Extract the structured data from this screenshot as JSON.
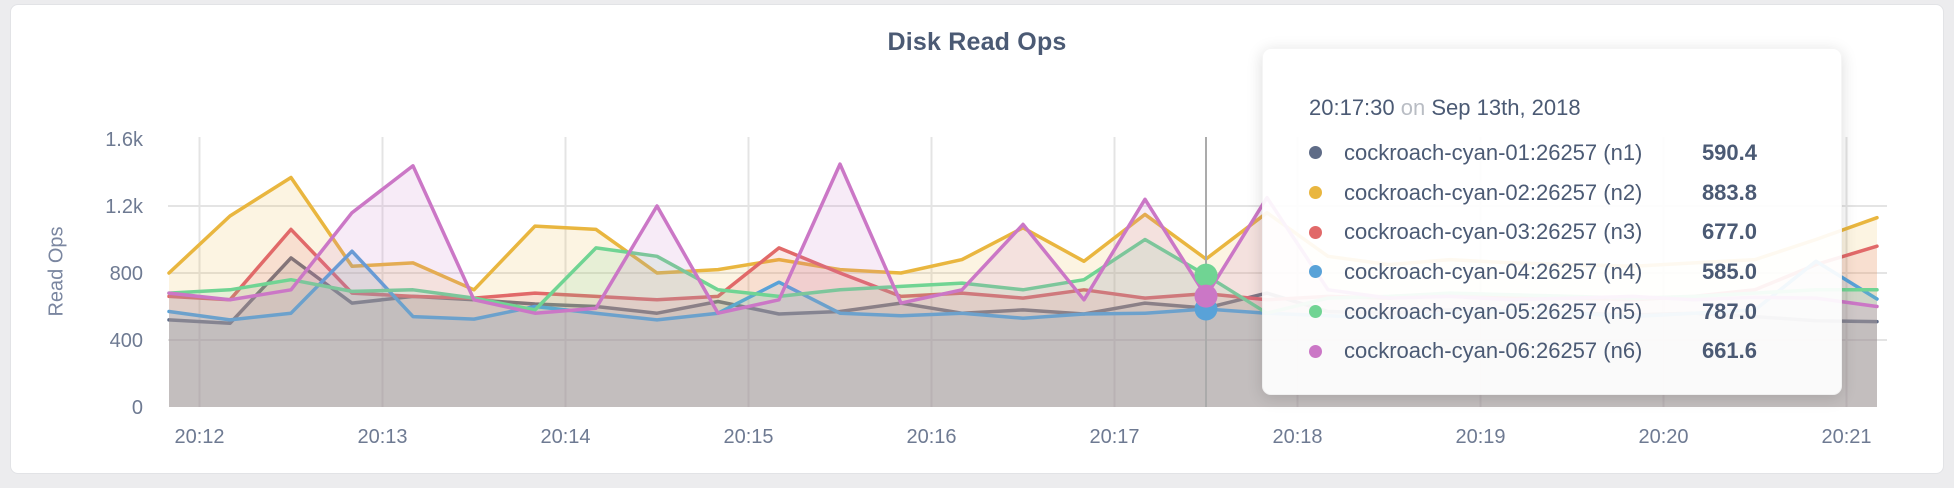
{
  "page": {
    "background": "#ececee",
    "card_background": "#ffffff"
  },
  "chart_data": {
    "type": "area",
    "title": "Disk Read Ops",
    "ylabel": "Read Ops",
    "grid": true,
    "legend_position": "tooltip-only",
    "x_start_time": "20:11:50",
    "x_step_seconds": 20,
    "x_ticks": [
      "20:12",
      "20:13",
      "20:14",
      "20:15",
      "20:16",
      "20:17",
      "20:18",
      "20:19",
      "20:20",
      "20:21"
    ],
    "y_ticks": [
      {
        "label": "0",
        "value": 0
      },
      {
        "label": "400",
        "value": 400
      },
      {
        "label": "800",
        "value": 800
      },
      {
        "label": "1.2k",
        "value": 1200
      },
      {
        "label": "1.6k",
        "value": 1600
      }
    ],
    "ylim": [
      0,
      1600
    ],
    "series": [
      {
        "id": "n1",
        "name": "cockroach-cyan-01:26257 (n1)",
        "color": "#5f6c87",
        "values": [
          520,
          500,
          890,
          620,
          660,
          640,
          615,
          600,
          560,
          630,
          555,
          570,
          620,
          560,
          580,
          555,
          620,
          590.4,
          680,
          570,
          560,
          580,
          570,
          560,
          550,
          560,
          540,
          515,
          510
        ]
      },
      {
        "id": "n2",
        "name": "cockroach-cyan-02:26257 (n2)",
        "color": "#e9b63f",
        "values": [
          800,
          1140,
          1370,
          840,
          860,
          700,
          1080,
          1060,
          800,
          820,
          880,
          820,
          800,
          880,
          1070,
          870,
          1150,
          883.8,
          1160,
          900,
          850,
          880,
          860,
          850,
          840,
          860,
          880,
          1000,
          1130
        ]
      },
      {
        "id": "n3",
        "name": "cockroach-cyan-03:26257 (n3)",
        "color": "#e16969",
        "values": [
          660,
          640,
          1060,
          680,
          660,
          650,
          680,
          660,
          640,
          660,
          950,
          800,
          660,
          680,
          650,
          700,
          650,
          677,
          640,
          660,
          650,
          670,
          660,
          650,
          640,
          660,
          700,
          850,
          960
        ]
      },
      {
        "id": "n4",
        "name": "cockroach-cyan-04:26257 (n4)",
        "color": "#59a2d8",
        "values": [
          570,
          520,
          560,
          930,
          540,
          525,
          600,
          560,
          520,
          560,
          745,
          560,
          545,
          560,
          530,
          555,
          560,
          585,
          560,
          545,
          530,
          560,
          575,
          560,
          540,
          560,
          580,
          870,
          645
        ]
      },
      {
        "id": "n5",
        "name": "cockroach-cyan-05:26257 (n5)",
        "color": "#70d493",
        "values": [
          680,
          700,
          760,
          690,
          700,
          650,
          580,
          950,
          900,
          700,
          660,
          700,
          720,
          740,
          700,
          760,
          1000,
          787,
          560,
          650,
          660,
          680,
          670,
          660,
          650,
          660,
          680,
          700,
          700
        ]
      },
      {
        "id": "n6",
        "name": "cockroach-cyan-06:26257 (n6)",
        "color": "#cb77c6",
        "values": [
          680,
          640,
          700,
          1160,
          1440,
          640,
          560,
          590,
          1200,
          560,
          640,
          1450,
          620,
          700,
          1090,
          640,
          1240,
          661.6,
          1250,
          700,
          650,
          660,
          640,
          650,
          660,
          640,
          655,
          650,
          600
        ]
      }
    ],
    "hover": {
      "time": "20:17:30",
      "date_connector": "on",
      "date": "Sep 13th, 2018",
      "x_index": 17,
      "values": {
        "n1": "590.4",
        "n2": "883.8",
        "n3": "677.0",
        "n4": "585.0",
        "n5": "787.0",
        "n6": "661.6"
      },
      "dot_series": [
        "n4",
        "n5",
        "n6"
      ]
    }
  }
}
